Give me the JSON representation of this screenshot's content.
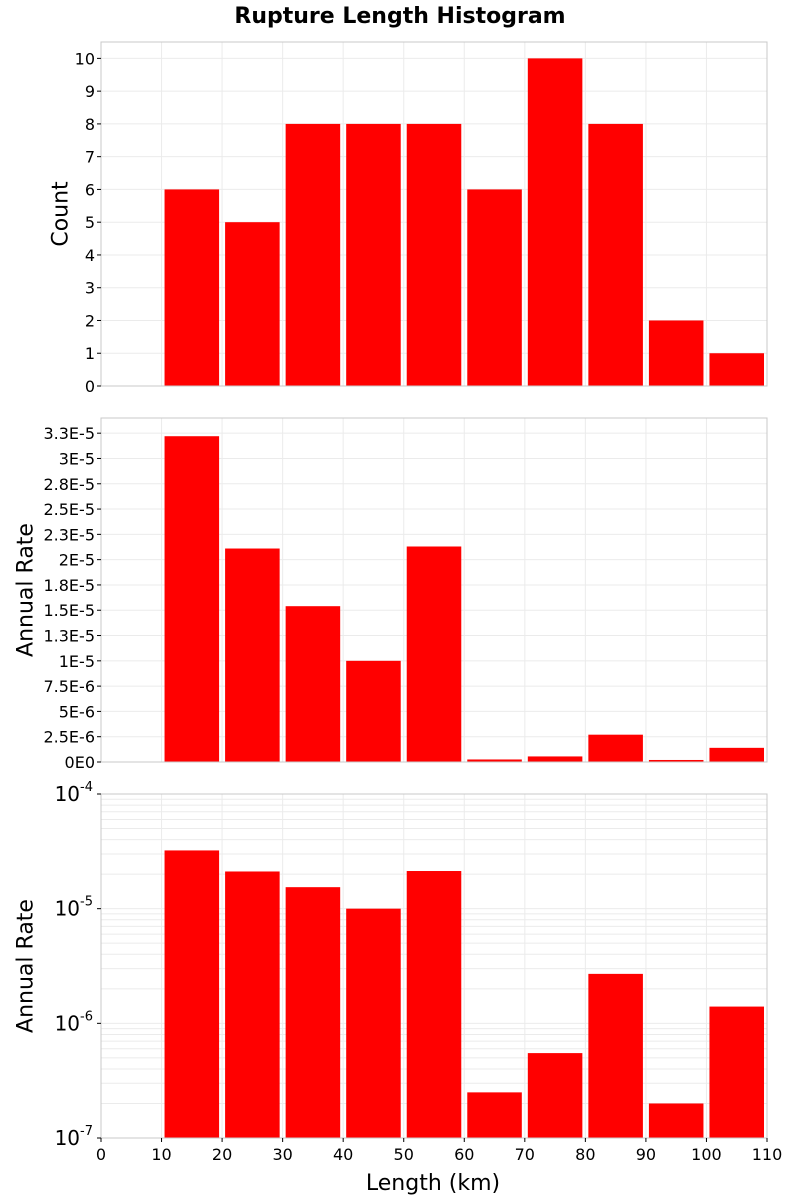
{
  "colors": {
    "bar": "#ff0000",
    "grid": "#ebebeb",
    "frame": "#c8c8c8",
    "background": "#ffffff",
    "text": "#000000"
  },
  "chart_data": {
    "type": "bar",
    "title": "Rupture Length Histogram",
    "xlabel": "Length (km)",
    "xlim": [
      0,
      110
    ],
    "x_ticks": [
      "0",
      "10",
      "20",
      "30",
      "40",
      "50",
      "60",
      "70",
      "80",
      "90",
      "100",
      "110"
    ],
    "bins": [
      {
        "x_start": 10,
        "x_end": 20
      },
      {
        "x_start": 20,
        "x_end": 30
      },
      {
        "x_start": 30,
        "x_end": 40
      },
      {
        "x_start": 40,
        "x_end": 50
      },
      {
        "x_start": 50,
        "x_end": 60
      },
      {
        "x_start": 60,
        "x_end": 70
      },
      {
        "x_start": 70,
        "x_end": 80
      },
      {
        "x_start": 80,
        "x_end": 90
      },
      {
        "x_start": 90,
        "x_end": 100
      },
      {
        "x_start": 100,
        "x_end": 110
      }
    ],
    "panels": [
      {
        "ylabel": "Count",
        "scale": "linear",
        "ylim": [
          0,
          10.5
        ],
        "y_ticks": [
          {
            "value": 0,
            "label": "0"
          },
          {
            "value": 1,
            "label": "1"
          },
          {
            "value": 2,
            "label": "2"
          },
          {
            "value": 3,
            "label": "3"
          },
          {
            "value": 4,
            "label": "4"
          },
          {
            "value": 5,
            "label": "5"
          },
          {
            "value": 6,
            "label": "6"
          },
          {
            "value": 7,
            "label": "7"
          },
          {
            "value": 8,
            "label": "8"
          },
          {
            "value": 9,
            "label": "9"
          },
          {
            "value": 10,
            "label": "10"
          }
        ],
        "values": [
          6,
          5,
          8,
          8,
          8,
          6,
          10,
          8,
          2,
          1
        ]
      },
      {
        "ylabel": "Annual Rate",
        "scale": "linear",
        "ylim": [
          0,
          3.4e-05
        ],
        "y_ticks": [
          {
            "value": 0,
            "label": "0E0"
          },
          {
            "value": 2.5e-06,
            "label": "2.5E-6"
          },
          {
            "value": 5e-06,
            "label": "5E-6"
          },
          {
            "value": 7.5e-06,
            "label": "7.5E-6"
          },
          {
            "value": 1e-05,
            "label": "1E-5"
          },
          {
            "value": 1.25e-05,
            "label": "1.3E-5"
          },
          {
            "value": 1.5e-05,
            "label": "1.5E-5"
          },
          {
            "value": 1.75e-05,
            "label": "1.8E-5"
          },
          {
            "value": 2e-05,
            "label": "2E-5"
          },
          {
            "value": 2.25e-05,
            "label": "2.3E-5"
          },
          {
            "value": 2.5e-05,
            "label": "2.5E-5"
          },
          {
            "value": 2.75e-05,
            "label": "2.8E-5"
          },
          {
            "value": 3e-05,
            "label": "3E-5"
          },
          {
            "value": 3.25e-05,
            "label": "3.3E-5"
          }
        ],
        "values": [
          3.22e-05,
          2.11e-05,
          1.54e-05,
          1e-05,
          2.13e-05,
          2.5e-07,
          5.5e-07,
          2.7e-06,
          2e-07,
          1.4e-06
        ]
      },
      {
        "ylabel": "Annual Rate",
        "scale": "log",
        "ylim": [
          1e-07,
          0.0001
        ],
        "y_ticks": [
          {
            "value": 0.0001,
            "base": "10",
            "exp": "-4"
          },
          {
            "value": 1e-05,
            "base": "10",
            "exp": "-5"
          },
          {
            "value": 1e-06,
            "base": "10",
            "exp": "-6"
          },
          {
            "value": 1e-07,
            "base": "10",
            "exp": "-7"
          }
        ],
        "values": [
          3.22e-05,
          2.11e-05,
          1.54e-05,
          1e-05,
          2.13e-05,
          2.5e-07,
          5.5e-07,
          2.7e-06,
          2e-07,
          1.4e-06
        ]
      }
    ],
    "grid": true,
    "legend": "none"
  }
}
